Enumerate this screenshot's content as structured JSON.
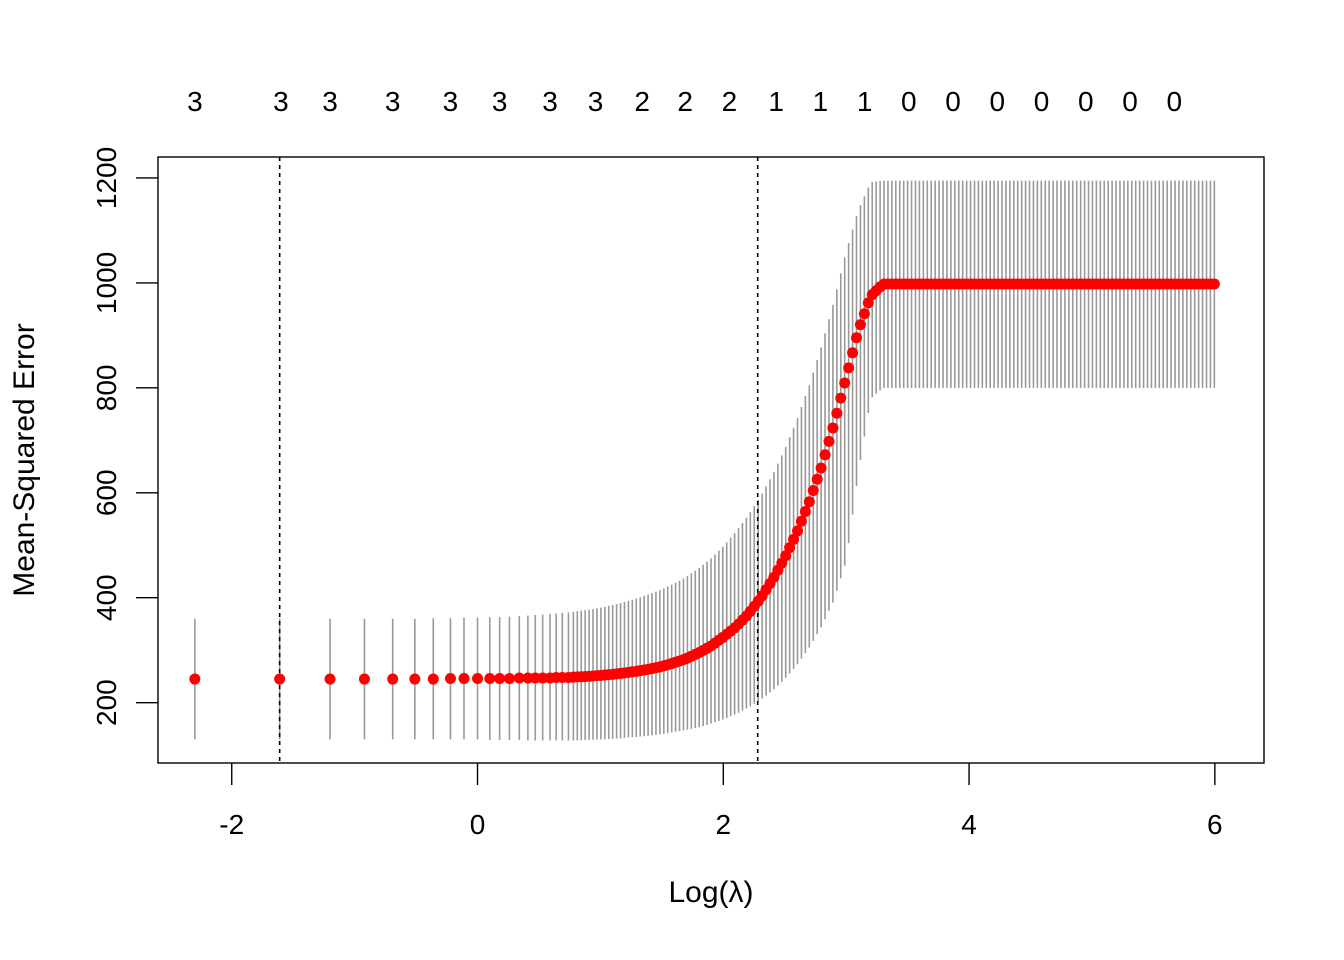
{
  "chart_data": {
    "type": "scatter",
    "title": "",
    "xlabel": "Log(λ)",
    "ylabel": "Mean-Squared Error",
    "xlim": [
      -2.6,
      6.4
    ],
    "ylim": [
      85,
      1240
    ],
    "x_ticks": [
      -2,
      0,
      2,
      4,
      6
    ],
    "y_ticks": [
      200,
      400,
      600,
      800,
      1000,
      1200
    ],
    "x_tick_labels": [
      "-2",
      "0",
      "2",
      "4",
      "6"
    ],
    "y_tick_labels": [
      "200",
      "400",
      "600",
      "800",
      "1000",
      "1200"
    ],
    "top_axis": {
      "positions": [
        -2.3,
        -1.6,
        -1.2,
        -0.92,
        -0.69,
        -0.51,
        -0.36,
        -0.22,
        -0.11,
        0.0,
        0.1,
        0.18,
        0.26,
        0.34,
        0.41,
        0.47,
        0.53,
        0.59,
        0.64,
        0.69,
        0.74,
        0.79,
        0.83,
        0.88,
        0.92,
        0.96,
        1.0,
        1.04,
        1.07,
        1.11,
        1.14,
        1.18,
        1.21,
        1.24,
        1.28,
        1.31,
        1.34,
        1.36,
        1.39,
        1.42,
        1.45,
        1.48,
        1.5,
        1.53,
        1.55,
        1.58,
        1.6,
        1.63,
        1.65,
        1.67,
        1.69,
        1.72,
        1.74,
        1.76,
        1.78,
        1.8,
        1.82,
        1.84,
        1.86,
        1.88,
        1.9,
        1.92,
        1.93,
        1.95,
        1.97,
        1.99,
        2.0,
        2.02,
        2.04,
        2.05,
        2.07,
        2.09,
        2.1,
        2.12,
        2.13,
        2.15,
        2.16,
        2.18,
        2.19,
        2.21,
        2.22,
        2.23,
        2.25,
        2.26,
        2.27,
        2.28,
        2.3
      ],
      "labels": [
        "3",
        "3",
        "3",
        "3",
        "3",
        "3",
        "3",
        "3",
        "2",
        "2",
        "2",
        "1",
        "1",
        "1",
        "0",
        "0",
        "0",
        "0",
        "0",
        "0",
        "0"
      ],
      "label_positions": [
        -2.3,
        -1.6,
        -1.2,
        -0.69,
        -0.22,
        0.18,
        0.59,
        0.96,
        1.34,
        1.69,
        2.05,
        2.43,
        2.79,
        3.15,
        3.51,
        3.87,
        4.23,
        4.59,
        4.95,
        5.31,
        5.67
      ]
    },
    "vlines": [
      -1.61,
      2.28
    ],
    "series": [
      {
        "x": [
          -2.3,
          -1.61,
          -1.2,
          -0.92,
          -0.69,
          -0.51,
          -0.36,
          -0.22,
          -0.11,
          0.0,
          0.1,
          0.18,
          0.26,
          0.34,
          0.41,
          0.47,
          0.53,
          0.59,
          0.64,
          0.69,
          0.74,
          0.8,
          0.9,
          1.0,
          1.1,
          1.2,
          1.3,
          1.4,
          1.5,
          1.6,
          1.7,
          1.8,
          1.9,
          2.0,
          2.1,
          2.2,
          2.3,
          2.4,
          2.5,
          2.6,
          2.7,
          2.8,
          2.9,
          3.0,
          3.1,
          3.2,
          3.3,
          3.4,
          3.6,
          3.8,
          4.0,
          4.4,
          4.8,
          5.2,
          5.6,
          6.0
        ],
        "y": [
          245,
          245,
          245,
          245,
          245,
          245,
          245,
          246,
          246,
          246,
          246,
          246,
          246,
          247,
          247,
          247,
          247,
          247,
          248,
          248,
          248,
          249,
          250,
          252,
          254,
          257,
          260,
          264,
          269,
          276,
          284,
          295,
          308,
          325,
          344,
          368,
          398,
          434,
          476,
          525,
          583,
          650,
          730,
          820,
          910,
          975,
          998,
          998,
          998,
          998,
          998,
          998,
          998,
          998,
          998,
          998
        ],
        "upper": [
          360,
          360,
          360,
          360,
          360,
          360,
          361,
          361,
          362,
          362,
          363,
          363,
          364,
          365,
          366,
          367,
          368,
          369,
          370,
          371,
          372,
          374,
          377,
          381,
          386,
          392,
          399,
          407,
          416,
          427,
          440,
          456,
          475,
          498,
          525,
          556,
          592,
          634,
          683,
          740,
          805,
          880,
          965,
          1060,
          1140,
          1192,
          1195,
          1195,
          1195,
          1195,
          1195,
          1195,
          1195,
          1195,
          1195,
          1195
        ],
        "lower": [
          130,
          130,
          130,
          130,
          130,
          130,
          130,
          130,
          130,
          130,
          129,
          129,
          129,
          129,
          128,
          128,
          128,
          128,
          128,
          128,
          128,
          128,
          129,
          130,
          131,
          133,
          135,
          137,
          140,
          144,
          148,
          153,
          160,
          168,
          178,
          190,
          205,
          223,
          245,
          272,
          305,
          345,
          395,
          470,
          640,
          780,
          800,
          800,
          800,
          800,
          800,
          800,
          800,
          800,
          800,
          800
        ]
      }
    ],
    "colors": {
      "points": "#ff0000",
      "error_bars": "#999999",
      "axes": "#000000",
      "vlines": "#000000"
    },
    "grid": false,
    "legend": "none"
  }
}
